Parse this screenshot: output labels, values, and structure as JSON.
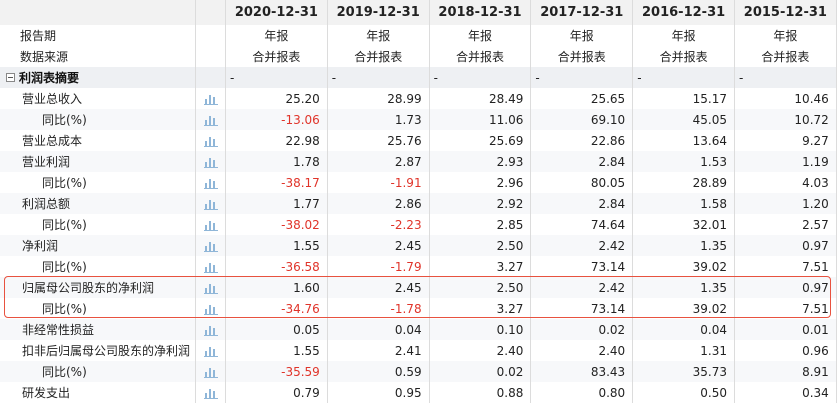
{
  "header": {
    "columns": [
      "2020-12-31",
      "2019-12-31",
      "2018-12-31",
      "2017-12-31",
      "2016-12-31",
      "2015-12-31"
    ]
  },
  "meta_rows": [
    {
      "label": "报告期",
      "values": [
        "年报",
        "年报",
        "年报",
        "年报",
        "年报",
        "年报"
      ]
    },
    {
      "label": "数据来源",
      "values": [
        "合并报表",
        "合并报表",
        "合并报表",
        "合并报表",
        "合并报表",
        "合并报表"
      ]
    }
  ],
  "section": {
    "label": "利润表摘要",
    "values": [
      "-",
      "-",
      "-",
      "-",
      "-",
      "-"
    ]
  },
  "rows": [
    {
      "label": "营业总收入",
      "values": [
        "25.20",
        "28.99",
        "28.49",
        "25.65",
        "15.17",
        "10.46"
      ]
    },
    {
      "label": "同比(%)",
      "values": [
        "-13.06",
        "1.73",
        "11.06",
        "69.10",
        "45.05",
        "10.72"
      ]
    },
    {
      "label": "营业总成本",
      "values": [
        "22.98",
        "25.76",
        "25.69",
        "22.86",
        "13.64",
        "9.27"
      ]
    },
    {
      "label": "营业利润",
      "values": [
        "1.78",
        "2.87",
        "2.93",
        "2.84",
        "1.53",
        "1.19"
      ]
    },
    {
      "label": "同比(%)",
      "values": [
        "-38.17",
        "-1.91",
        "2.96",
        "80.05",
        "28.89",
        "4.03"
      ]
    },
    {
      "label": "利润总额",
      "values": [
        "1.77",
        "2.86",
        "2.92",
        "2.84",
        "1.58",
        "1.20"
      ]
    },
    {
      "label": "同比(%)",
      "values": [
        "-38.02",
        "-2.23",
        "2.85",
        "74.64",
        "32.01",
        "2.57"
      ]
    },
    {
      "label": "净利润",
      "values": [
        "1.55",
        "2.45",
        "2.50",
        "2.42",
        "1.35",
        "0.97"
      ]
    },
    {
      "label": "同比(%)",
      "values": [
        "-36.58",
        "-1.79",
        "3.27",
        "73.14",
        "39.02",
        "7.51"
      ]
    },
    {
      "label": "归属母公司股东的净利润",
      "values": [
        "1.60",
        "2.45",
        "2.50",
        "2.42",
        "1.35",
        "0.97"
      ]
    },
    {
      "label": "同比(%)",
      "values": [
        "-34.76",
        "-1.78",
        "3.27",
        "73.14",
        "39.02",
        "7.51"
      ]
    },
    {
      "label": "非经常性损益",
      "values": [
        "0.05",
        "0.04",
        "0.10",
        "0.02",
        "0.04",
        "0.01"
      ]
    },
    {
      "label": "扣非后归属母公司股东的净利润",
      "values": [
        "1.55",
        "2.41",
        "2.40",
        "2.40",
        "1.31",
        "0.96"
      ]
    },
    {
      "label": "同比(%)",
      "values": [
        "-35.59",
        "0.59",
        "0.02",
        "83.43",
        "35.73",
        "8.91"
      ]
    },
    {
      "label": "研发支出",
      "values": [
        "0.79",
        "0.95",
        "0.88",
        "0.80",
        "0.50",
        "0.34"
      ]
    }
  ],
  "icons": {
    "trend": "bar-chart-icon",
    "collapse": "collapse-minus-icon"
  },
  "colors": {
    "negative": "#e0342a",
    "highlight": "#e8523f",
    "icon": "#8fb6d8"
  }
}
